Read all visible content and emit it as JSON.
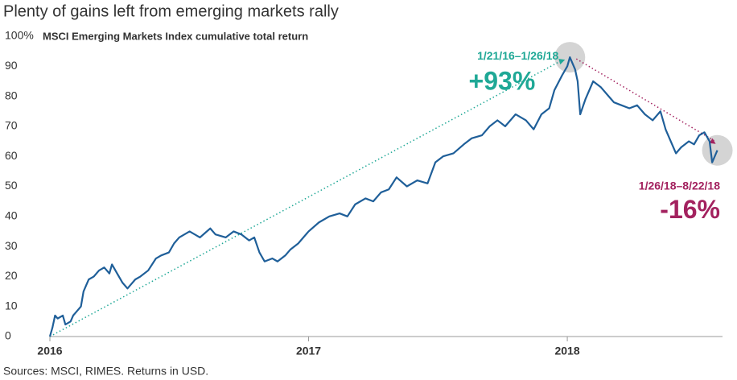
{
  "chart_data": {
    "type": "line",
    "title": "Plenty of gains left from emerging markets rally",
    "subtitle": "MSCI Emerging Markets Index cumulative total return",
    "source": "Sources: MSCI, RIMES. Returns in USD.",
    "xlim": [
      2016,
      2018.6
    ],
    "xticks": [
      2016,
      2017,
      2018
    ],
    "ylim": [
      0,
      100
    ],
    "yticks": [
      0,
      10,
      20,
      30,
      40,
      50,
      60,
      70,
      80,
      {
        "value": 100,
        "label": "100%"
      },
      90
    ],
    "grid": false,
    "series": [
      {
        "name": "MSCI Emerging Markets Index",
        "color": "#1f5f99",
        "x": [
          2016.0,
          2016.01,
          2016.02,
          2016.03,
          2016.05,
          2016.06,
          2016.08,
          2016.09,
          2016.1,
          2016.12,
          2016.13,
          2016.14,
          2016.15,
          2016.17,
          2016.19,
          2016.21,
          2016.23,
          2016.24,
          2016.26,
          2016.28,
          2016.3,
          2016.31,
          2016.33,
          2016.35,
          2016.38,
          2016.41,
          2016.43,
          2016.46,
          2016.48,
          2016.5,
          2016.54,
          2016.58,
          2016.62,
          2016.64,
          2016.68,
          2016.71,
          2016.74,
          2016.77,
          2016.79,
          2016.81,
          2016.83,
          2016.86,
          2016.88,
          2016.91,
          2016.93,
          2016.96,
          2017.0,
          2017.04,
          2017.08,
          2017.12,
          2017.15,
          2017.18,
          2017.22,
          2017.25,
          2017.28,
          2017.31,
          2017.34,
          2017.38,
          2017.42,
          2017.46,
          2017.49,
          2017.52,
          2017.56,
          2017.6,
          2017.63,
          2017.67,
          2017.7,
          2017.73,
          2017.76,
          2017.8,
          2017.84,
          2017.87,
          2017.9,
          2017.93,
          2017.95,
          2017.98,
          2018.0,
          2018.01,
          2018.03,
          2018.04,
          2018.05,
          2018.07,
          2018.1,
          2018.13,
          2018.16,
          2018.18,
          2018.21,
          2018.24,
          2018.27,
          2018.3,
          2018.33,
          2018.36,
          2018.38,
          2018.4,
          2018.42,
          2018.44,
          2018.47,
          2018.49,
          2018.51,
          2018.53,
          2018.55,
          2018.56,
          2018.58
        ],
        "values": [
          0,
          3,
          7,
          6,
          7,
          4,
          5,
          7,
          8,
          10,
          15,
          17,
          19,
          20,
          22,
          23,
          21,
          24,
          21,
          18,
          16,
          17,
          19,
          20,
          22,
          26,
          27,
          28,
          31,
          33,
          35,
          33,
          36,
          34,
          33,
          35,
          34,
          32,
          33,
          28,
          25,
          26,
          25,
          27,
          29,
          31,
          35,
          38,
          40,
          41,
          40,
          44,
          46,
          45,
          48,
          49,
          53,
          50,
          52,
          51,
          58,
          60,
          61,
          64,
          66,
          67,
          70,
          72,
          70,
          74,
          72,
          69,
          74,
          76,
          82,
          87,
          90,
          93,
          89,
          85,
          74,
          79,
          85,
          83,
          80,
          78,
          77,
          76,
          77,
          74,
          72,
          75,
          69,
          65,
          61,
          63,
          65,
          64,
          67,
          68,
          65,
          58,
          62
        ]
      }
    ],
    "annotations": [
      {
        "label": "1/21/16–1/26/18",
        "value_label": "+93%",
        "color": "#1fa896"
      },
      {
        "label": "1/26/18–8/22/18",
        "value_label": "-16%",
        "color": "#a3225f"
      }
    ]
  }
}
